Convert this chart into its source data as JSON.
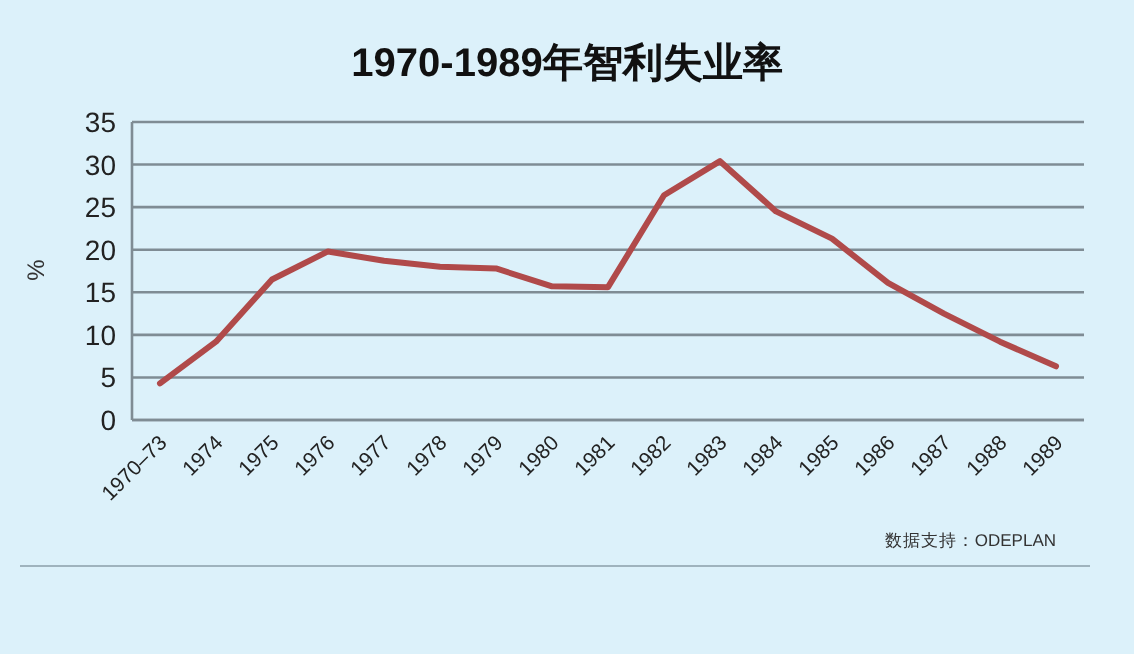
{
  "chart_data": {
    "type": "line",
    "title": "1970-1989年智利失业率",
    "ylabel": "%",
    "categories": [
      "1970–73",
      "1974",
      "1975",
      "1976",
      "1977",
      "1978",
      "1979",
      "1980",
      "1981",
      "1982",
      "1983",
      "1984",
      "1985",
      "1986",
      "1987",
      "1988",
      "1989"
    ],
    "series": [
      {
        "color": "#b04a4a",
        "values": [
          4.3,
          9.2,
          16.5,
          19.8,
          18.7,
          18.0,
          17.8,
          15.7,
          15.6,
          26.4,
          30.4,
          24.5,
          21.3,
          16.1,
          12.5,
          9.2,
          6.3
        ]
      }
    ],
    "ylim": [
      0,
      35
    ],
    "yticks": [
      0,
      5,
      10,
      15,
      20,
      25,
      30,
      35
    ],
    "grid": "y",
    "marker": "none",
    "line_style": "solid",
    "annotations": [
      "数据支持：ODEPLAN"
    ]
  }
}
